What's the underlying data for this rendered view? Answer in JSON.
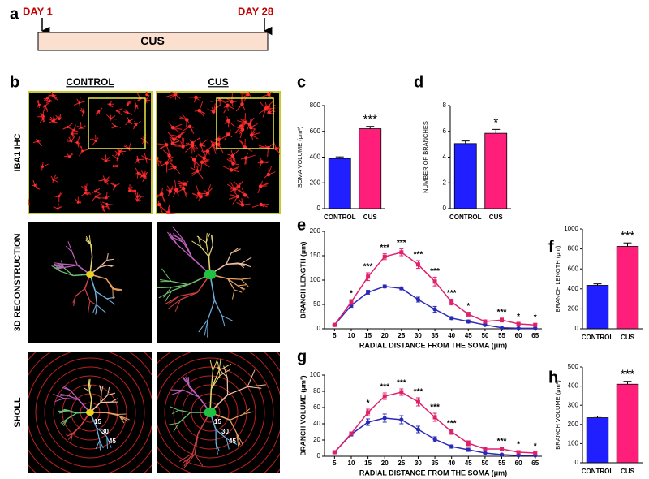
{
  "panel_labels": [
    "a",
    "b",
    "c",
    "d",
    "e",
    "f",
    "g",
    "h"
  ],
  "timeline": {
    "start": "DAY 1",
    "end": "DAY 28",
    "label": "CUS"
  },
  "images": {
    "columns": [
      "CONTROL",
      "CUS"
    ],
    "rows": [
      "IBA1 IHC",
      "3D RECONSTRUCTION",
      "SHOLL"
    ],
    "sholl_labels": [
      "15",
      "30",
      "45"
    ]
  },
  "chart_data": [
    {
      "type": "bar",
      "y_label": "SOMA VOLUME (μm³)",
      "categories": [
        "CONTROL",
        "CUS"
      ],
      "values": [
        390,
        620
      ],
      "errors": [
        12,
        18
      ],
      "colors": [
        "#1f1fff",
        "#ff1f7a"
      ],
      "ylim": [
        0,
        800
      ],
      "yticks": [
        0,
        200,
        400,
        600,
        800
      ],
      "annotations": [
        null,
        "***"
      ]
    },
    {
      "type": "bar",
      "y_label": "NUMBER OF BRANCHES",
      "categories": [
        "CONTROL",
        "CUS"
      ],
      "values": [
        5.05,
        5.85
      ],
      "errors": [
        0.2,
        0.3
      ],
      "colors": [
        "#1f1fff",
        "#ff1f7a"
      ],
      "ylim": [
        0,
        8
      ],
      "yticks": [
        0,
        2,
        4,
        6,
        8
      ],
      "annotations": [
        null,
        "*"
      ]
    },
    {
      "type": "line",
      "y_label": "BRANCH LENGTH (μm)",
      "x_label": "RADIAL DISTANCE FROM THE SOMA (μm)",
      "x": [
        5,
        10,
        15,
        20,
        25,
        30,
        35,
        40,
        45,
        50,
        55,
        60,
        65
      ],
      "xlim": [
        2,
        67
      ],
      "xticks": [
        5,
        10,
        15,
        20,
        25,
        30,
        35,
        40,
        45,
        50,
        55,
        60,
        65
      ],
      "ylim": [
        0,
        200
      ],
      "yticks": [
        0,
        50,
        100,
        150,
        200
      ],
      "series": [
        {
          "color": "#2a2ab8",
          "marker": "circle",
          "values": [
            8,
            48,
            75,
            87,
            83,
            60,
            40,
            22,
            15,
            8,
            2,
            1,
            1
          ],
          "errors": [
            1,
            4,
            4,
            3,
            3,
            5,
            6,
            3,
            3,
            2,
            1,
            1,
            1
          ]
        },
        {
          "color": "#e0206a",
          "marker": "square",
          "values": [
            8,
            55,
            107,
            148,
            157,
            132,
            97,
            55,
            30,
            15,
            18,
            10,
            8
          ],
          "errors": [
            1,
            5,
            8,
            6,
            7,
            8,
            9,
            6,
            4,
            3,
            4,
            3,
            3
          ]
        }
      ],
      "annotations": [
        null,
        "*",
        "***",
        "***",
        "***",
        "***",
        "***",
        "***",
        "*",
        null,
        "***",
        "*",
        "*"
      ]
    },
    {
      "type": "bar",
      "y_label": "BRANCH LENGTH (μm)",
      "categories": [
        "CONTROL",
        "CUS"
      ],
      "values": [
        435,
        825
      ],
      "errors": [
        15,
        35
      ],
      "colors": [
        "#1f1fff",
        "#ff1f7a"
      ],
      "ylim": [
        0,
        1000
      ],
      "yticks": [
        0,
        200,
        400,
        600,
        800,
        1000
      ],
      "annotations": [
        null,
        "***"
      ]
    },
    {
      "type": "line",
      "y_label": "BRANCH VOLUME (μm³)",
      "x_label": "RADIAL DISTANCE FROM THE SOMA (μm)",
      "x": [
        5,
        10,
        15,
        20,
        25,
        30,
        35,
        40,
        45,
        50,
        55,
        60,
        65
      ],
      "xlim": [
        2,
        67
      ],
      "xticks": [
        5,
        10,
        15,
        20,
        25,
        30,
        35,
        40,
        45,
        50,
        55,
        60,
        65
      ],
      "ylim": [
        0,
        100
      ],
      "yticks": [
        0,
        20,
        40,
        60,
        80,
        100
      ],
      "series": [
        {
          "color": "#2a2ab8",
          "marker": "circle",
          "values": [
            5,
            27,
            42,
            47,
            45,
            33,
            21,
            12,
            8,
            4,
            2,
            1,
            1
          ],
          "errors": [
            1,
            2,
            4,
            5,
            5,
            4,
            3,
            2,
            2,
            1,
            1,
            1,
            1
          ]
        },
        {
          "color": "#e0206a",
          "marker": "square",
          "values": [
            5,
            28,
            54,
            74,
            79,
            67,
            48,
            30,
            16,
            9,
            9,
            5,
            4
          ],
          "errors": [
            1,
            2,
            4,
            4,
            4,
            5,
            5,
            3,
            3,
            2,
            2,
            2,
            1
          ]
        }
      ],
      "annotations": [
        null,
        null,
        "*",
        "***",
        "***",
        "***",
        "***",
        "***",
        null,
        null,
        "***",
        "*",
        "*"
      ]
    },
    {
      "type": "bar",
      "y_label": "BRANCH VOLUME (μm³)",
      "categories": [
        "CONTROL",
        "CUS"
      ],
      "values": [
        235,
        410
      ],
      "errors": [
        8,
        15
      ],
      "colors": [
        "#1f1fff",
        "#ff1f7a"
      ],
      "ylim": [
        0,
        500
      ],
      "yticks": [
        0,
        100,
        200,
        300,
        400,
        500
      ],
      "annotations": [
        null,
        "***"
      ]
    }
  ]
}
